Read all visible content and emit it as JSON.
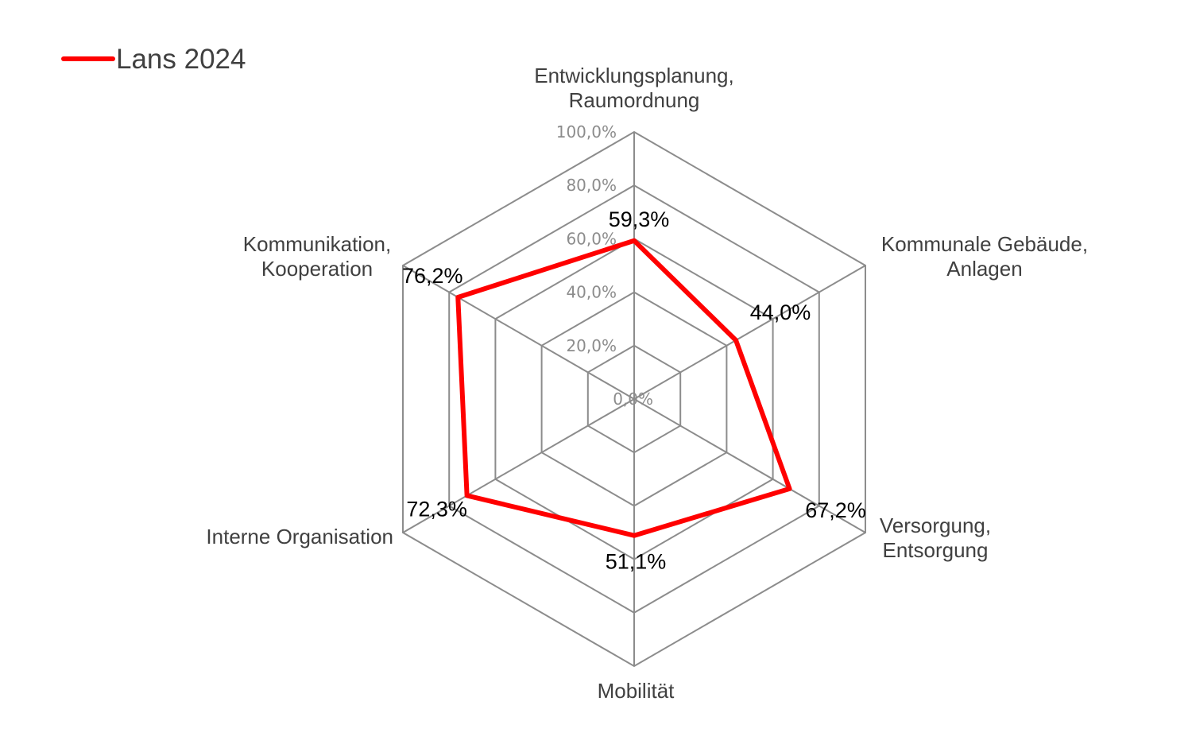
{
  "chart_data": {
    "type": "radar",
    "title": "",
    "categories": [
      [
        "Entwicklungsplanung,",
        "Raumordnung"
      ],
      [
        "Kommunale Gebäude,",
        "Anlagen"
      ],
      [
        "Versorgung,",
        "Entsorgung"
      ],
      [
        "Mobilität"
      ],
      [
        "Interne Organisation"
      ],
      [
        "Kommunikation,",
        "Kooperation"
      ]
    ],
    "series": [
      {
        "name": "Lans 2024",
        "values": [
          59.3,
          44.0,
          67.2,
          51.1,
          72.3,
          76.2
        ],
        "data_labels": [
          "59,3%",
          "44,0%",
          "67,2%",
          "51,1%",
          "72,3%",
          "76,2%"
        ],
        "color": "#ff0000"
      }
    ],
    "radial_ticks": [
      "0,0%",
      "20,0%",
      "40,0%",
      "60,0%",
      "80,0%",
      "100,0%"
    ],
    "radial_range": [
      0,
      100
    ],
    "grid": true,
    "grid_color": "#8c8c8c",
    "legend_position": "top-left"
  }
}
